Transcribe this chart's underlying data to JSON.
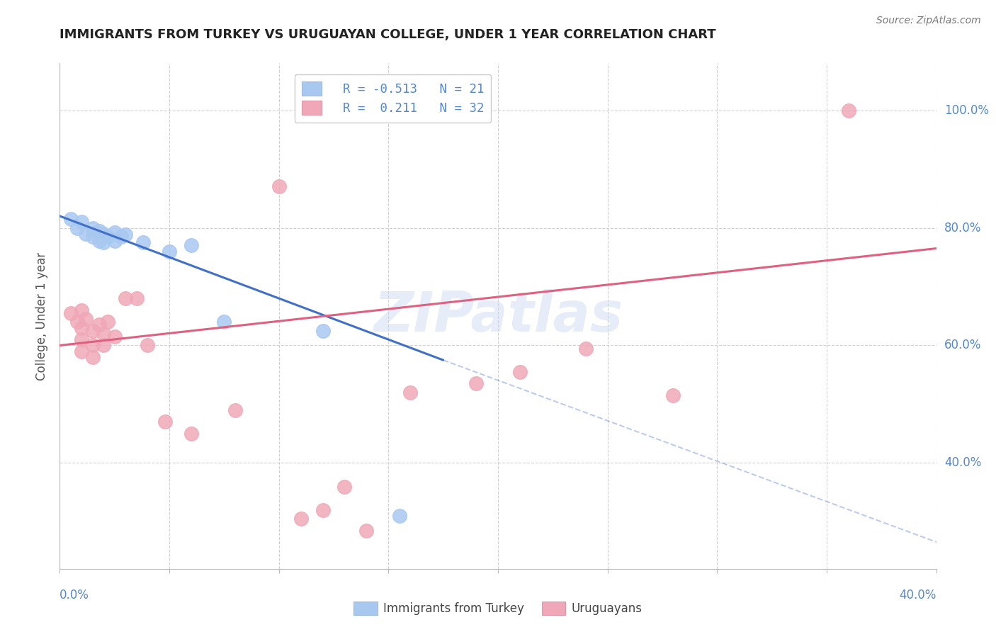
{
  "title": "IMMIGRANTS FROM TURKEY VS URUGUAYAN COLLEGE, UNDER 1 YEAR CORRELATION CHART",
  "source": "Source: ZipAtlas.com",
  "ylabel": "College, Under 1 year",
  "ylabel_right_labels": [
    "40.0%",
    "60.0%",
    "80.0%",
    "100.0%"
  ],
  "ylabel_right_values": [
    0.4,
    0.6,
    0.8,
    1.0
  ],
  "xlim": [
    0.0,
    0.4
  ],
  "ylim": [
    0.22,
    1.08
  ],
  "watermark": "ZIPatlas",
  "blue_color": "#a8c8f0",
  "pink_color": "#f0a8b8",
  "blue_line_color": "#4070c8",
  "pink_line_color": "#e06080",
  "blue_scatter": [
    [
      0.005,
      0.815
    ],
    [
      0.008,
      0.8
    ],
    [
      0.01,
      0.81
    ],
    [
      0.012,
      0.79
    ],
    [
      0.015,
      0.8
    ],
    [
      0.015,
      0.785
    ],
    [
      0.018,
      0.795
    ],
    [
      0.018,
      0.778
    ],
    [
      0.02,
      0.79
    ],
    [
      0.02,
      0.775
    ],
    [
      0.022,
      0.785
    ],
    [
      0.025,
      0.792
    ],
    [
      0.025,
      0.778
    ],
    [
      0.028,
      0.785
    ],
    [
      0.03,
      0.788
    ],
    [
      0.038,
      0.775
    ],
    [
      0.05,
      0.76
    ],
    [
      0.06,
      0.77
    ],
    [
      0.075,
      0.64
    ],
    [
      0.12,
      0.625
    ],
    [
      0.155,
      0.31
    ]
  ],
  "pink_scatter": [
    [
      0.005,
      0.655
    ],
    [
      0.008,
      0.64
    ],
    [
      0.01,
      0.66
    ],
    [
      0.01,
      0.63
    ],
    [
      0.01,
      0.61
    ],
    [
      0.01,
      0.59
    ],
    [
      0.012,
      0.645
    ],
    [
      0.015,
      0.625
    ],
    [
      0.015,
      0.6
    ],
    [
      0.015,
      0.58
    ],
    [
      0.018,
      0.635
    ],
    [
      0.02,
      0.62
    ],
    [
      0.02,
      0.6
    ],
    [
      0.022,
      0.64
    ],
    [
      0.025,
      0.615
    ],
    [
      0.03,
      0.68
    ],
    [
      0.035,
      0.68
    ],
    [
      0.04,
      0.6
    ],
    [
      0.048,
      0.47
    ],
    [
      0.06,
      0.45
    ],
    [
      0.08,
      0.49
    ],
    [
      0.1,
      0.87
    ],
    [
      0.11,
      0.305
    ],
    [
      0.12,
      0.32
    ],
    [
      0.13,
      0.36
    ],
    [
      0.14,
      0.285
    ],
    [
      0.16,
      0.52
    ],
    [
      0.19,
      0.535
    ],
    [
      0.21,
      0.555
    ],
    [
      0.24,
      0.595
    ],
    [
      0.28,
      0.515
    ],
    [
      0.36,
      1.0
    ]
  ],
  "blue_trendline_solid": [
    [
      0.0,
      0.82
    ],
    [
      0.175,
      0.575
    ]
  ],
  "blue_trendline_dashed": [
    [
      0.175,
      0.575
    ],
    [
      0.415,
      0.245
    ]
  ],
  "pink_trendline": [
    [
      0.0,
      0.6
    ],
    [
      0.4,
      0.765
    ]
  ]
}
